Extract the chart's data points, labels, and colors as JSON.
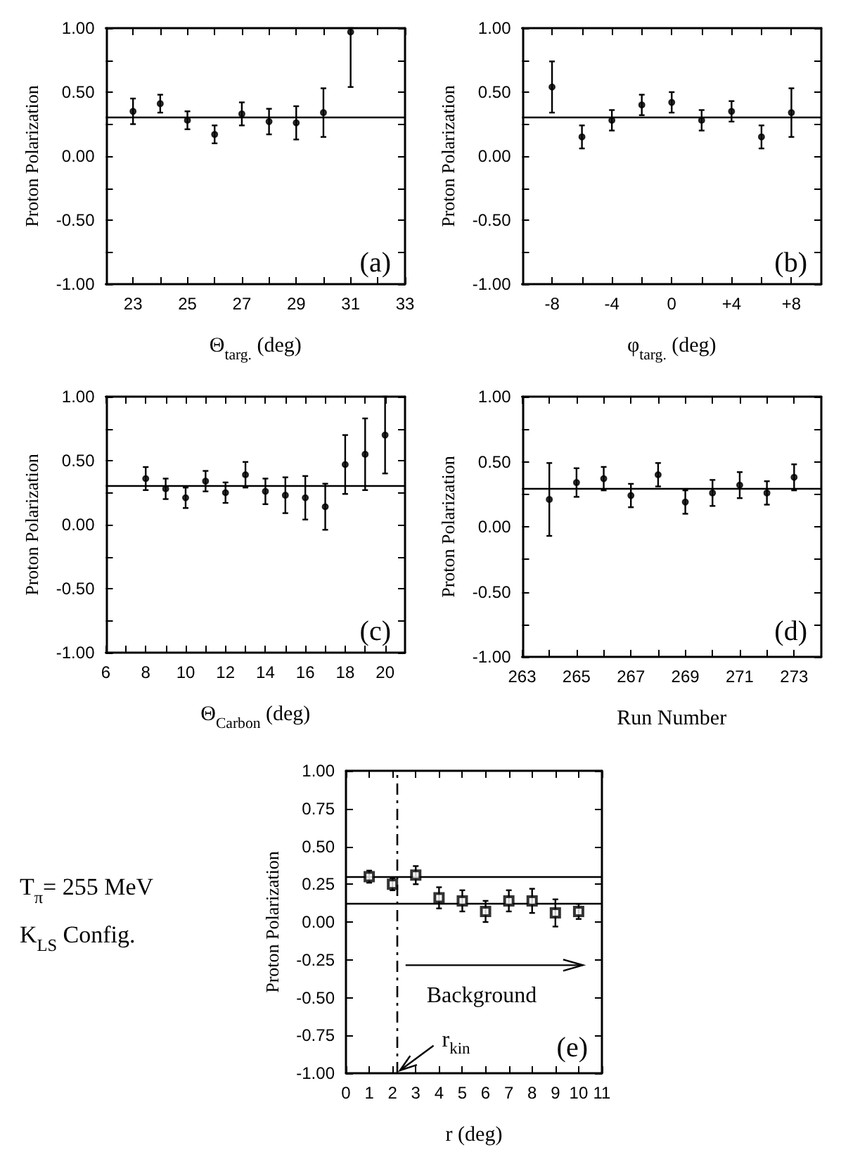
{
  "chart_data": [
    {
      "type": "scatter",
      "xlabel": "Θ$_{targ.}$ (deg)",
      "ylabel": "Proton Polarization",
      "marker": "circle",
      "grid": false,
      "xlim": [
        22,
        33
      ],
      "xticks": [
        23,
        {
          "value": 24,
          "label": null
        },
        25,
        {
          "value": 26,
          "label": null
        },
        27,
        {
          "value": 28,
          "label": null
        },
        29,
        {
          "value": 30,
          "label": null
        },
        31,
        {
          "value": 32,
          "label": null
        },
        33
      ],
      "ylim": [
        -1,
        1
      ],
      "yticks": [
        {
          "value": -1,
          "label": "-1.00"
        },
        {
          "value": -0.75,
          "label": null
        },
        {
          "value": -0.5,
          "label": "-0.50"
        },
        {
          "value": -0.25,
          "label": null
        },
        {
          "value": 0,
          "label": "0.00"
        },
        {
          "value": 0.25,
          "label": null
        },
        {
          "value": 0.5,
          "label": "0.50"
        },
        {
          "value": 0.75,
          "label": null
        },
        {
          "value": 1,
          "label": "1.00"
        }
      ],
      "series": [
        {
          "color": "#000000",
          "x": [
            23,
            24,
            25,
            26,
            27,
            28,
            29,
            30,
            31
          ],
          "values": [
            0.35,
            0.41,
            0.28,
            0.17,
            0.33,
            0.27,
            0.26,
            0.34,
            0.97
          ],
          "errors": [
            0.1,
            0.07,
            0.07,
            0.07,
            0.09,
            0.1,
            0.13,
            0.19,
            [
              0.54,
              1.0
            ]
          ]
        }
      ],
      "ref_lines": [
        {
          "axis": "y",
          "value": 0.3,
          "color": "#000000"
        }
      ],
      "annotations": [
        "(a)"
      ]
    },
    {
      "type": "scatter",
      "xlabel": "φ$_{targ.}$ (deg)",
      "ylabel": "Proton Polarization",
      "marker": "circle",
      "grid": false,
      "xlim": [
        -10,
        10
      ],
      "xticks": [
        -8,
        {
          "value": -6,
          "label": null
        },
        -4,
        {
          "value": -2,
          "label": null
        },
        0,
        {
          "value": 2,
          "label": null
        },
        {
          "value": 4,
          "label": "+4"
        },
        {
          "value": 6,
          "label": null
        },
        {
          "value": 8,
          "label": "+8"
        }
      ],
      "ylim": [
        -1,
        1
      ],
      "yticks": [
        {
          "value": -1,
          "label": "-1.00"
        },
        {
          "value": -0.75,
          "label": null
        },
        {
          "value": -0.5,
          "label": "-0.50"
        },
        {
          "value": -0.25,
          "label": null
        },
        {
          "value": 0,
          "label": "0.00"
        },
        {
          "value": 0.25,
          "label": null
        },
        {
          "value": 0.5,
          "label": "0.50"
        },
        {
          "value": 0.75,
          "label": null
        },
        {
          "value": 1,
          "label": "1.00"
        }
      ],
      "series": [
        {
          "color": "#000000",
          "x": [
            -8,
            -6,
            -4,
            -2,
            0,
            2,
            4,
            6,
            8
          ],
          "values": [
            0.54,
            0.15,
            0.28,
            0.4,
            0.42,
            0.28,
            0.35,
            0.15,
            0.34
          ],
          "errors": [
            0.2,
            0.09,
            0.08,
            0.08,
            0.08,
            0.08,
            0.08,
            0.09,
            0.19
          ]
        }
      ],
      "ref_lines": [
        {
          "axis": "y",
          "value": 0.3,
          "color": "#000000"
        }
      ],
      "annotations": [
        "(b)"
      ]
    },
    {
      "type": "scatter",
      "xlabel": "Θ$_{Carbon}$ (deg)",
      "ylabel": "Proton Polarization",
      "marker": "circle",
      "grid": false,
      "xlim": [
        6,
        21
      ],
      "xticks": [
        6,
        {
          "value": 7,
          "label": null
        },
        8,
        {
          "value": 9,
          "label": null
        },
        10,
        {
          "value": 11,
          "label": null
        },
        12,
        {
          "value": 13,
          "label": null
        },
        14,
        {
          "value": 15,
          "label": null
        },
        16,
        {
          "value": 17,
          "label": null
        },
        18,
        {
          "value": 19,
          "label": null
        },
        20
      ],
      "ylim": [
        -1,
        1
      ],
      "yticks": [
        {
          "value": -1,
          "label": "-1.00"
        },
        {
          "value": -0.75,
          "label": null
        },
        {
          "value": -0.5,
          "label": "-0.50"
        },
        {
          "value": -0.25,
          "label": null
        },
        {
          "value": 0,
          "label": "0.00"
        },
        {
          "value": 0.25,
          "label": null
        },
        {
          "value": 0.5,
          "label": "0.50"
        },
        {
          "value": 0.75,
          "label": null
        },
        {
          "value": 1,
          "label": "1.00"
        }
      ],
      "series": [
        {
          "color": "#000000",
          "x": [
            8,
            9,
            10,
            11,
            12,
            13,
            14,
            15,
            16,
            17,
            18,
            19,
            20
          ],
          "values": [
            0.36,
            0.28,
            0.21,
            0.34,
            0.25,
            0.39,
            0.26,
            0.23,
            0.21,
            0.14,
            0.47,
            0.55,
            0.7
          ],
          "errors": [
            0.09,
            0.08,
            0.08,
            0.08,
            0.08,
            0.1,
            0.1,
            0.14,
            0.17,
            0.18,
            0.23,
            0.28,
            0.3
          ]
        }
      ],
      "ref_lines": [
        {
          "axis": "y",
          "value": 0.3,
          "color": "#000000"
        }
      ],
      "annotations": [
        "(c)"
      ]
    },
    {
      "type": "scatter",
      "xlabel": "Run Number",
      "ylabel": "Proton Polarization",
      "marker": "circle",
      "grid": false,
      "xlim": [
        263,
        274
      ],
      "xticks": [
        263,
        {
          "value": 264,
          "label": null
        },
        265,
        {
          "value": 266,
          "label": null
        },
        267,
        {
          "value": 268,
          "label": null
        },
        269,
        {
          "value": 270,
          "label": null
        },
        271,
        {
          "value": 272,
          "label": null
        },
        273
      ],
      "ylim": [
        -1,
        1
      ],
      "yticks": [
        {
          "value": -1,
          "label": "-1.00"
        },
        {
          "value": -0.75,
          "label": null
        },
        {
          "value": -0.5,
          "label": "-0.50"
        },
        {
          "value": -0.25,
          "label": null
        },
        {
          "value": 0,
          "label": "0.00"
        },
        {
          "value": 0.25,
          "label": null
        },
        {
          "value": 0.5,
          "label": "0.50"
        },
        {
          "value": 0.75,
          "label": null
        },
        {
          "value": 1,
          "label": "1.00"
        }
      ],
      "series": [
        {
          "color": "#000000",
          "x": [
            264,
            265,
            266,
            267,
            268,
            269,
            270,
            271,
            272,
            273
          ],
          "values": [
            0.21,
            0.34,
            0.37,
            0.24,
            0.4,
            0.19,
            0.26,
            0.32,
            0.26,
            0.38
          ],
          "errors": [
            0.28,
            0.11,
            0.09,
            0.09,
            0.09,
            0.09,
            0.1,
            0.1,
            0.09,
            0.1
          ]
        }
      ],
      "ref_lines": [
        {
          "axis": "y",
          "value": 0.3,
          "color": "#000000"
        }
      ],
      "annotations": [
        "(d)"
      ]
    },
    {
      "type": "scatter",
      "xlabel": "r (deg)",
      "ylabel": "Proton Polarization",
      "marker": "square",
      "grid": false,
      "xlim": [
        0,
        11
      ],
      "xticks": [
        0,
        1,
        2,
        3,
        4,
        5,
        6,
        7,
        8,
        9,
        10,
        11
      ],
      "ylim": [
        -1,
        1
      ],
      "yticks": [
        {
          "value": -1,
          "label": "-1.00"
        },
        {
          "value": -0.75,
          "label": "-0.75"
        },
        {
          "value": -0.5,
          "label": "-0.50"
        },
        {
          "value": -0.25,
          "label": "-0.25"
        },
        {
          "value": 0,
          "label": "0.00"
        },
        {
          "value": 0.25,
          "label": "0.25"
        },
        {
          "value": 0.5,
          "label": "0.50"
        },
        {
          "value": 0.75,
          "label": "0.75"
        },
        {
          "value": 1,
          "label": "1.00"
        }
      ],
      "series": [
        {
          "color": "#000000",
          "x": [
            1,
            2,
            3,
            4,
            5,
            6,
            7,
            8,
            9,
            10
          ],
          "values": [
            0.3,
            0.25,
            0.31,
            0.16,
            0.14,
            0.07,
            0.14,
            0.14,
            0.06,
            0.07
          ],
          "errors": [
            0.04,
            0.04,
            0.06,
            0.07,
            0.07,
            0.07,
            0.07,
            0.08,
            0.09,
            0.05
          ]
        }
      ],
      "ref_lines": [
        {
          "axis": "y",
          "value": 0.3,
          "color": "#000000"
        },
        {
          "axis": "y",
          "value": 0.12,
          "color": "#000000"
        },
        {
          "axis": "x",
          "value": 2.2,
          "color": "#000000",
          "line_style": "dashed"
        }
      ],
      "annotations": [
        "(e)",
        "Background",
        "r$_{kin}$",
        "T$_{π}$= 255 MeV",
        "K$_{LS}$ Config."
      ]
    }
  ]
}
